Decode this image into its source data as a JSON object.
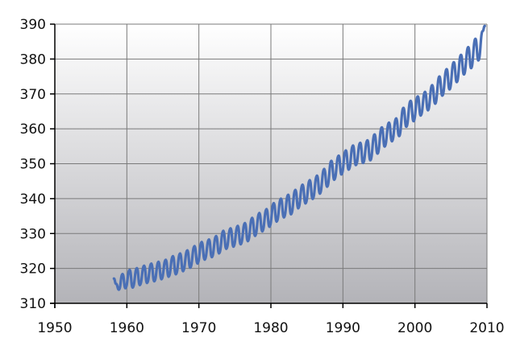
{
  "chart_data": {
    "type": "line",
    "title": "",
    "xlabel": "",
    "ylabel": "",
    "xlim": [
      1950,
      2010
    ],
    "ylim": [
      310,
      390
    ],
    "x_ticks": [
      1950,
      1960,
      1970,
      1980,
      1990,
      2000,
      2010
    ],
    "y_ticks": [
      310,
      320,
      330,
      340,
      350,
      360,
      370,
      380,
      390
    ],
    "grid": true,
    "legend": "none",
    "line_color": "#4a6fb5",
    "series": [
      {
        "name": "",
        "x": [
          1958.2,
          1958.5,
          1958.9,
          1959.4,
          1959.8,
          1960.4,
          1960.8,
          1961.4,
          1961.8,
          1962.4,
          1962.8,
          1963.4,
          1963.8,
          1964.4,
          1964.8,
          1965.4,
          1965.8,
          1966.4,
          1966.8,
          1967.4,
          1967.8,
          1968.4,
          1968.8,
          1969.4,
          1969.8,
          1970.4,
          1970.8,
          1971.4,
          1971.8,
          1972.4,
          1972.8,
          1973.4,
          1973.8,
          1974.4,
          1974.8,
          1975.4,
          1975.8,
          1976.4,
          1976.8,
          1977.4,
          1977.8,
          1978.4,
          1978.8,
          1979.4,
          1979.8,
          1980.4,
          1980.8,
          1981.4,
          1981.8,
          1982.4,
          1982.8,
          1983.4,
          1983.8,
          1984.4,
          1984.8,
          1985.4,
          1985.8,
          1986.4,
          1986.8,
          1987.4,
          1987.8,
          1988.4,
          1988.8,
          1989.4,
          1989.8,
          1990.4,
          1990.8,
          1991.4,
          1991.8,
          1992.4,
          1992.8,
          1993.4,
          1993.8,
          1994.4,
          1994.8,
          1995.4,
          1995.8,
          1996.4,
          1996.8,
          1997.4,
          1997.8,
          1998.4,
          1998.8,
          1999.4,
          1999.8,
          2000.4,
          2000.8,
          2001.4,
          2001.8,
          2002.4,
          2002.8,
          2003.4,
          2003.8,
          2004.4,
          2004.8,
          2005.4,
          2005.8,
          2006.4,
          2006.8,
          2007.4,
          2007.8,
          2008.4,
          2008.8,
          2009.4,
          2009.7
        ],
        "values": [
          317.1,
          315.6,
          313.9,
          318.4,
          314.3,
          319.6,
          314.5,
          320.1,
          315.2,
          320.8,
          315.8,
          321.4,
          316.3,
          321.9,
          316.9,
          322.5,
          317.6,
          323.5,
          318.3,
          324.3,
          319.2,
          325.2,
          320.2,
          326.4,
          321.4,
          327.6,
          322.5,
          328.3,
          323.2,
          329.3,
          324.3,
          330.8,
          325.6,
          331.5,
          326.2,
          332.2,
          326.9,
          333.0,
          327.8,
          334.5,
          329.3,
          335.9,
          330.6,
          337.0,
          331.9,
          338.7,
          333.4,
          340.0,
          334.6,
          341.1,
          335.5,
          342.5,
          337.2,
          344.0,
          338.6,
          345.3,
          339.9,
          346.6,
          341.4,
          348.5,
          343.4,
          350.8,
          345.4,
          352.3,
          346.9,
          353.8,
          348.3,
          355.2,
          349.6,
          356.0,
          350.2,
          356.7,
          351.0,
          358.4,
          352.9,
          360.4,
          354.9,
          361.8,
          356.4,
          363.0,
          357.9,
          366.0,
          360.6,
          368.0,
          362.2,
          369.3,
          363.8,
          370.6,
          365.3,
          372.5,
          367.2,
          375.0,
          369.5,
          377.1,
          371.3,
          379.1,
          373.4,
          381.2,
          375.6,
          383.4,
          377.4,
          385.8,
          379.6,
          388.0,
          389.5
        ]
      }
    ]
  }
}
